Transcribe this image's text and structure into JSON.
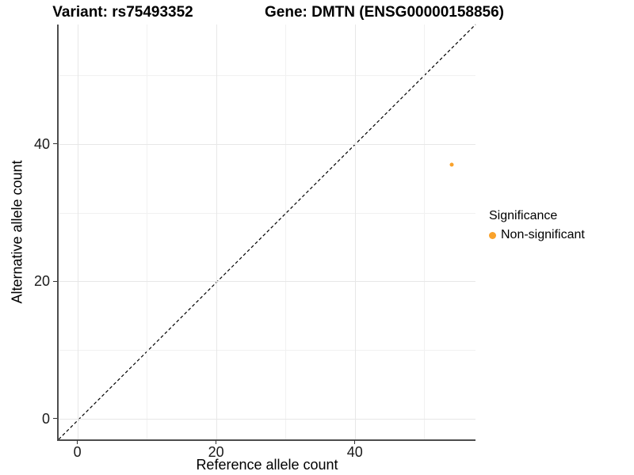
{
  "titles": {
    "variant": "Variant: rs75493352",
    "gene": "Gene: DMTN (ENSG00000158856)"
  },
  "chart_data": {
    "type": "scatter",
    "xlabel": "Reference allele count",
    "ylabel": "Alternative allele count",
    "x_domain": [
      -2.7,
      57.4
    ],
    "y_domain": [
      -3.0,
      57.4
    ],
    "x_ticks": [
      0,
      20,
      40
    ],
    "y_ticks": [
      0,
      20,
      40
    ],
    "x_minor_gridlines": [
      10,
      30,
      50
    ],
    "y_minor_gridlines": [
      10,
      30,
      50
    ],
    "grid": true,
    "identity_line": {
      "style": "dashed",
      "color": "#000000",
      "from_xy": [
        -3.0,
        -3.0
      ],
      "to_xy": [
        57.4,
        57.4
      ]
    },
    "points": [
      {
        "x": 54,
        "y": 37,
        "series": "Non-significant"
      }
    ],
    "legend": {
      "title": "Significance",
      "position": "right",
      "items": [
        {
          "label": "Non-significant",
          "color": "#F9A22B"
        }
      ]
    },
    "colors": {
      "point": "#F9A22B",
      "grid_major": "#E7E7E7",
      "grid_minor": "#F1F1F1",
      "axis_line": "#4d4d4d"
    }
  }
}
